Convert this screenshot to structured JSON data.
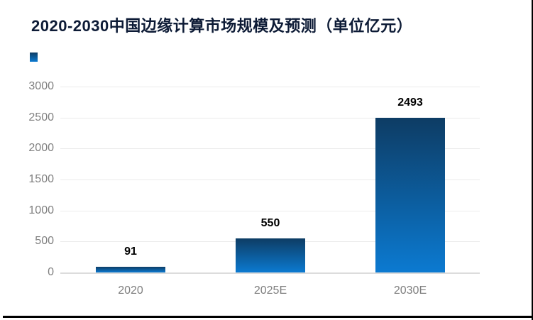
{
  "title": "2020-2030中国边缘计算市场规模及预测（单位亿元）",
  "legend": {
    "labels": [
      ""
    ],
    "position": "top-left"
  },
  "colors": {
    "title_text": "#0d1b36",
    "bar_gradient_top": "#0d3c64",
    "bar_gradient_bottom": "#0c7ad1",
    "gridline": "#ebebeb",
    "axis_tick_text": "#7f7f7f",
    "value_label_text": "#000000",
    "frame_border": "#000000",
    "background": "#ffffff"
  },
  "chart_data": {
    "type": "bar",
    "title": "2020-2030中国边缘计算市场规模及预测（单位亿元）",
    "categories": [
      "2020",
      "2025E",
      "2030E"
    ],
    "values": [
      91,
      550,
      2493
    ],
    "value_labels": [
      "91",
      "550",
      "2493"
    ],
    "xlabel": "",
    "ylabel": "",
    "ylim": [
      0,
      3000
    ],
    "yticks": [
      0,
      500,
      1000,
      1500,
      2000,
      2500,
      3000
    ],
    "ytick_labels": [
      "0",
      "500",
      "1000",
      "1500",
      "2000",
      "2500",
      "3000"
    ],
    "grid": true,
    "legend_position": "top-left",
    "series": [
      {
        "name": "",
        "values": [
          91,
          550,
          2493
        ]
      }
    ]
  }
}
